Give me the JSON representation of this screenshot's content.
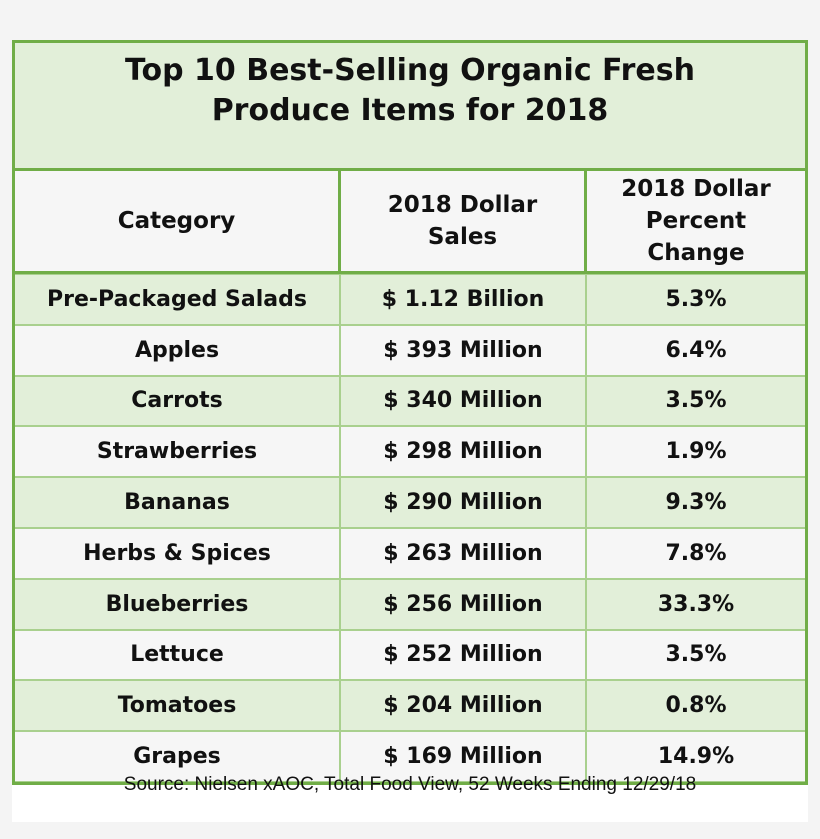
{
  "title_line1": "Top 10 Best-Selling Organic Fresh",
  "title_line2": "Produce Items for 2018",
  "headers": {
    "category": "Category",
    "sales_line1": "2018 Dollar",
    "sales_line2": "Sales",
    "change_line1": "2018 Dollar",
    "change_line2": "Percent",
    "change_line3": "Change"
  },
  "rows": [
    {
      "category": "Pre-Packaged Salads",
      "sales": "$ 1.12 Billion",
      "change": "5.3%"
    },
    {
      "category": "Apples",
      "sales": "$ 393 Million",
      "change": "6.4%"
    },
    {
      "category": "Carrots",
      "sales": "$ 340 Million",
      "change": "3.5%"
    },
    {
      "category": "Strawberries",
      "sales": "$ 298 Million",
      "change": "1.9%"
    },
    {
      "category": "Bananas",
      "sales": "$ 290 Million",
      "change": "9.3%"
    },
    {
      "category": "Herbs & Spices",
      "sales": "$ 263 Million",
      "change": "7.8%"
    },
    {
      "category": "Blueberries",
      "sales": "$ 256 Million",
      "change": "33.3%"
    },
    {
      "category": "Lettuce",
      "sales": "$ 252 Million",
      "change": "3.5%"
    },
    {
      "category": "Tomatoes",
      "sales": "$ 204 Million",
      "change": "0.8%"
    },
    {
      "category": "Grapes",
      "sales": "$ 169 Million",
      "change": "14.9%"
    }
  ],
  "source": "Source: Nielsen xAOC, Total Food View, 52 Weeks Ending 12/29/18",
  "colors": {
    "border": "#70ad47",
    "fill": "#e2efd9",
    "alt_fill": "#f6f6f6"
  },
  "chart_data": {
    "type": "table",
    "title": "Top 10 Best-Selling Organic Fresh Produce Items for 2018",
    "columns": [
      "Category",
      "2018 Dollar Sales",
      "2018 Dollar Percent Change"
    ],
    "categories": [
      "Pre-Packaged Salads",
      "Apples",
      "Carrots",
      "Strawberries",
      "Bananas",
      "Herbs & Spices",
      "Blueberries",
      "Lettuce",
      "Tomatoes",
      "Grapes"
    ],
    "series": [
      {
        "name": "2018 Dollar Sales (USD millions)",
        "values": [
          1120,
          393,
          340,
          298,
          290,
          263,
          256,
          252,
          204,
          169
        ]
      },
      {
        "name": "2018 Dollar Percent Change (%)",
        "values": [
          5.3,
          6.4,
          3.5,
          1.9,
          9.3,
          7.8,
          33.3,
          3.5,
          0.8,
          14.9
        ]
      }
    ],
    "sales_labels": [
      "$ 1.12 Billion",
      "$ 393 Million",
      "$ 340 Million",
      "$ 298 Million",
      "$ 290 Million",
      "$ 263 Million",
      "$ 256 Million",
      "$ 252 Million",
      "$ 204 Million",
      "$ 169 Million"
    ],
    "source": "Source: Nielsen xAOC, Total Food View, 52 Weeks Ending 12/29/18"
  }
}
